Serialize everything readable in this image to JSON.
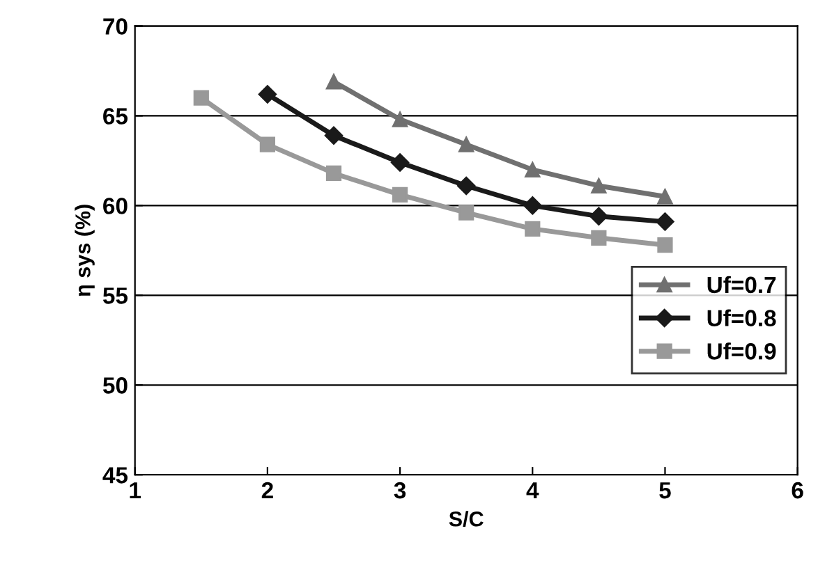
{
  "chart_data": {
    "type": "line",
    "xlabel": "S/C",
    "ylabel": "η sys (%)",
    "xlim": [
      1,
      6
    ],
    "xticks": [
      1,
      2,
      3,
      4,
      5,
      6
    ],
    "ylim": [
      45,
      70
    ],
    "yticks": [
      45,
      50,
      55,
      60,
      65,
      70
    ],
    "grid": "y",
    "legend": "bottom right",
    "line_style": "solid",
    "series": [
      {
        "name": "Uf=0.7",
        "color": "#707070",
        "marker": "triangle",
        "x": [
          2.5,
          3,
          3.5,
          4,
          4.5,
          5
        ],
        "values": [
          66.9,
          64.8,
          63.4,
          62.0,
          61.1,
          60.5
        ]
      },
      {
        "name": "Uf=0.8",
        "color": "#1a1a1a",
        "marker": "diamond",
        "x": [
          2,
          2.5,
          3,
          3.5,
          4,
          4.5,
          5
        ],
        "values": [
          66.2,
          63.9,
          62.4,
          61.1,
          60.0,
          59.4,
          59.1
        ]
      },
      {
        "name": "Uf=0.9",
        "color": "#999999",
        "marker": "square",
        "x": [
          1.5,
          2,
          2.5,
          3,
          3.5,
          4,
          4.5,
          5
        ],
        "values": [
          66.0,
          63.4,
          61.8,
          60.6,
          59.6,
          58.7,
          58.2,
          57.8
        ]
      }
    ]
  }
}
